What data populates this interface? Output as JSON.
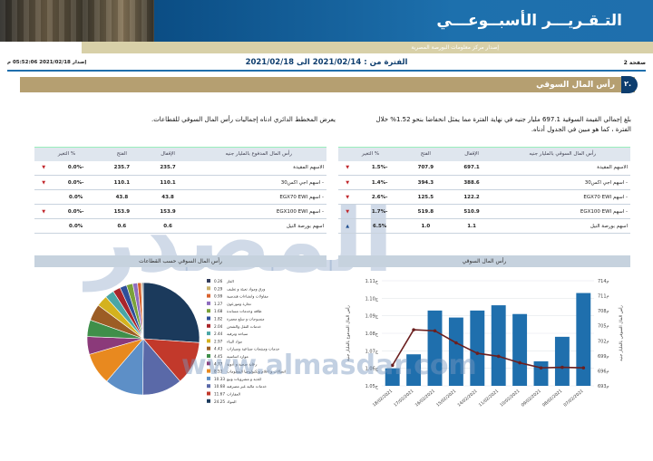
{
  "header": {
    "title": "التـقـريـــر الأسبــوعـــي",
    "subtitle": "إصدار مركز معلومات البورصة المصرية"
  },
  "meta": {
    "page": "صفحة 2",
    "period": "الفترة من : 2021/02/14 الى 2021/02/18",
    "issued": "إصدار 2021/02/18 05:52:06 م"
  },
  "section": {
    "number": "٢.",
    "title": "رأس المال السوقي"
  },
  "intro_right": "بلغ إجمالي القيمة السوقية 697.1 مليار جنيه في نهاية الفترة مما يمثل انخفاضا بنحو 1.52% خلال الفترة ، كما هو مبين في الجدول أدناه.",
  "intro_left": "يعرض المخطط الدائري ادناه إجماليات رأس المال السوقي للقطاعات.",
  "table_right": {
    "headers": [
      "رأس المال السوقي بالمليار جنيه",
      "الإقفال",
      "الفتح",
      "% التغير"
    ],
    "rows": [
      {
        "name": "الاسهم المقيدة",
        "close": "697.1",
        "open": "707.9",
        "change": "-1.5%",
        "dir": "down"
      },
      {
        "name": "- اسهم اجي اكس30",
        "close": "388.6",
        "open": "394.3",
        "change": "-1.4%",
        "dir": "down"
      },
      {
        "name": "- اسهم EGX70 EWI",
        "close": "122.2",
        "open": "125.5",
        "change": "-2.6%",
        "dir": "down"
      },
      {
        "name": "- اسهم EGX100 EWI",
        "close": "510.9",
        "open": "519.8",
        "change": "-1.7%",
        "dir": "down"
      },
      {
        "name": "اسهم بورصة النيل",
        "close": "1.1",
        "open": "1.0",
        "change": "6.5%",
        "dir": "up"
      }
    ]
  },
  "table_left": {
    "headers": [
      "رأس المال المدفوع بالمليار جنيه",
      "الإقفال",
      "الفتح",
      "% التغير"
    ],
    "rows": [
      {
        "name": "الاسهم المقيدة",
        "close": "235.7",
        "open": "235.7",
        "change": "-0.0%",
        "dir": "down"
      },
      {
        "name": "- اسهم اجي اكس30",
        "close": "110.1",
        "open": "110.1",
        "change": "-0.0%",
        "dir": "down"
      },
      {
        "name": "- اسهم EGX70 EWI",
        "close": "43.8",
        "open": "43.8",
        "change": "0.0%",
        "dir": "none"
      },
      {
        "name": "- اسهم EGX100 EWI",
        "close": "153.9",
        "open": "153.9",
        "change": "-0.0%",
        "dir": "down"
      },
      {
        "name": "اسهم بورصة النيل",
        "close": "0.6",
        "open": "0.6",
        "change": "0.0%",
        "dir": "none"
      }
    ]
  },
  "chart_headers": {
    "bar": "رأس المال السوقي",
    "pie": "رأس المال السوقي حسب القطاعات"
  },
  "watermark": {
    "text": "المصدر",
    "site": "www.almasdar.com"
  },
  "chart_data": [
    {
      "type": "bar",
      "categories": [
        "18/02/2021",
        "17/02/2021",
        "16/02/2021",
        "15/02/2021",
        "14/02/2021",
        "11/02/2021",
        "10/02/2021",
        "09/02/2021",
        "08/02/2021",
        "07/02/2021"
      ],
      "series": [
        {
          "values": [
            1.06,
            1.068,
            1.093,
            1.089,
            1.093,
            1.096,
            1.091,
            1.064,
            1.078,
            1.103
          ]
        },
        {
          "values": [
            697.1,
            704.2,
            704.0,
            701.6,
            699.5,
            698.9,
            697.6,
            696.6,
            696.7,
            696.6
          ]
        }
      ],
      "y_left": {
        "ticks": [
          "1.11ج",
          "1.10ج",
          "1.09ج",
          "1.08ج",
          "1.07ج",
          "1.06ج",
          "1.05ج"
        ],
        "ylim": [
          1.05,
          1.11
        ]
      },
      "y_right": {
        "ticks": [
          "714م",
          "711م",
          "708م",
          "705م",
          "702م",
          "699م",
          "696م",
          "693م"
        ],
        "ylim": [
          693,
          714
        ]
      },
      "ylabel_left": "رأس المال المدفوع بالمليار جنيه",
      "ylabel_right": "رأس المال السوقي بالمليار جنيه",
      "colors": {
        "bar": "#1f6fad",
        "line": "#6b1f1f"
      }
    },
    {
      "type": "pie",
      "slices": [
        {
          "label": "البنوك",
          "value": 24.25,
          "color": "#1b3a5c"
        },
        {
          "label": "العقارات",
          "value": 11.67,
          "color": "#c2392b"
        },
        {
          "label": "خدمات مالية غير مصرفية",
          "value": 10.68,
          "color": "#5a69a8"
        },
        {
          "label": "اتصالات و اعلام وتكنولوجيا المعلومات",
          "value": 10.33,
          "color": "#5d8fc7"
        },
        {
          "label": "اغذية ومشروبات وتبغ",
          "value": 8.53,
          "color": "#e8891f"
        },
        {
          "label": "رعاية صحية و أدوية",
          "value": 4.77,
          "color": "#8b3a7a"
        },
        {
          "label": "موارد اساسية",
          "value": 4.45,
          "color": "#3f8f4a"
        },
        {
          "label": "خدمات و منتجات صناعية وسيارات",
          "value": 4.43,
          "color": "#9c5d25"
        },
        {
          "label": "مواد البناء",
          "value": 2.97,
          "color": "#d4b21e"
        },
        {
          "label": "سياحة وترفيه",
          "value": 2.44,
          "color": "#4aa6a6"
        },
        {
          "label": "خدمات النقل والشحن",
          "value": 2.04,
          "color": "#a9262b"
        },
        {
          "label": "منسوجات و سلع معمرة",
          "value": 1.82,
          "color": "#2f4f9a"
        },
        {
          "label": "طاقة وخدمات مساندة",
          "value": 1.68,
          "color": "#7aa23a"
        },
        {
          "label": "تجارة و موزعون",
          "value": 1.27,
          "color": "#8e6dbf"
        },
        {
          "label": "مقاولات و انشاءات هندسية",
          "value": 0.99,
          "color": "#d8622e"
        },
        {
          "label": "ورق ومواد تعبئة و تغليف",
          "value": 0.29,
          "color": "#c9b26b"
        },
        {
          "label": "غاز",
          "value": 0.26,
          "color": "#333d5c"
        }
      ],
      "legend_sample": [
        "الغاز",
        "ورق ومواد تعبئة و تغليف",
        "مقاولات وانشاءات هندسية",
        "تجارة وموزعون",
        "طاقة وخدمات مساندة",
        "منسوجات و سلع معمرة",
        "خدمات النقل والشحن",
        "سياحة وترفيه",
        "مواد البناء",
        "خدمات ومنتجات صناعية وسيارات",
        "موارد اساسية",
        "رعاية صحية و أدوية",
        "اتصالات و اعلام وتكنولوجيا المعلومات",
        "اغذية و مشروبات وتبغ",
        "خدمات مالية غير مصرفية",
        "العقارات",
        "البنوك"
      ],
      "legend_values": [
        "0.26",
        "0.29",
        "0.99",
        "1.27",
        "1.68",
        "1.82",
        "2.04",
        "2.44",
        "2.97",
        "4.43",
        "4.45",
        "4.77",
        "8.53",
        "10.33",
        "10.68",
        "11.67",
        "24.25"
      ]
    }
  ]
}
